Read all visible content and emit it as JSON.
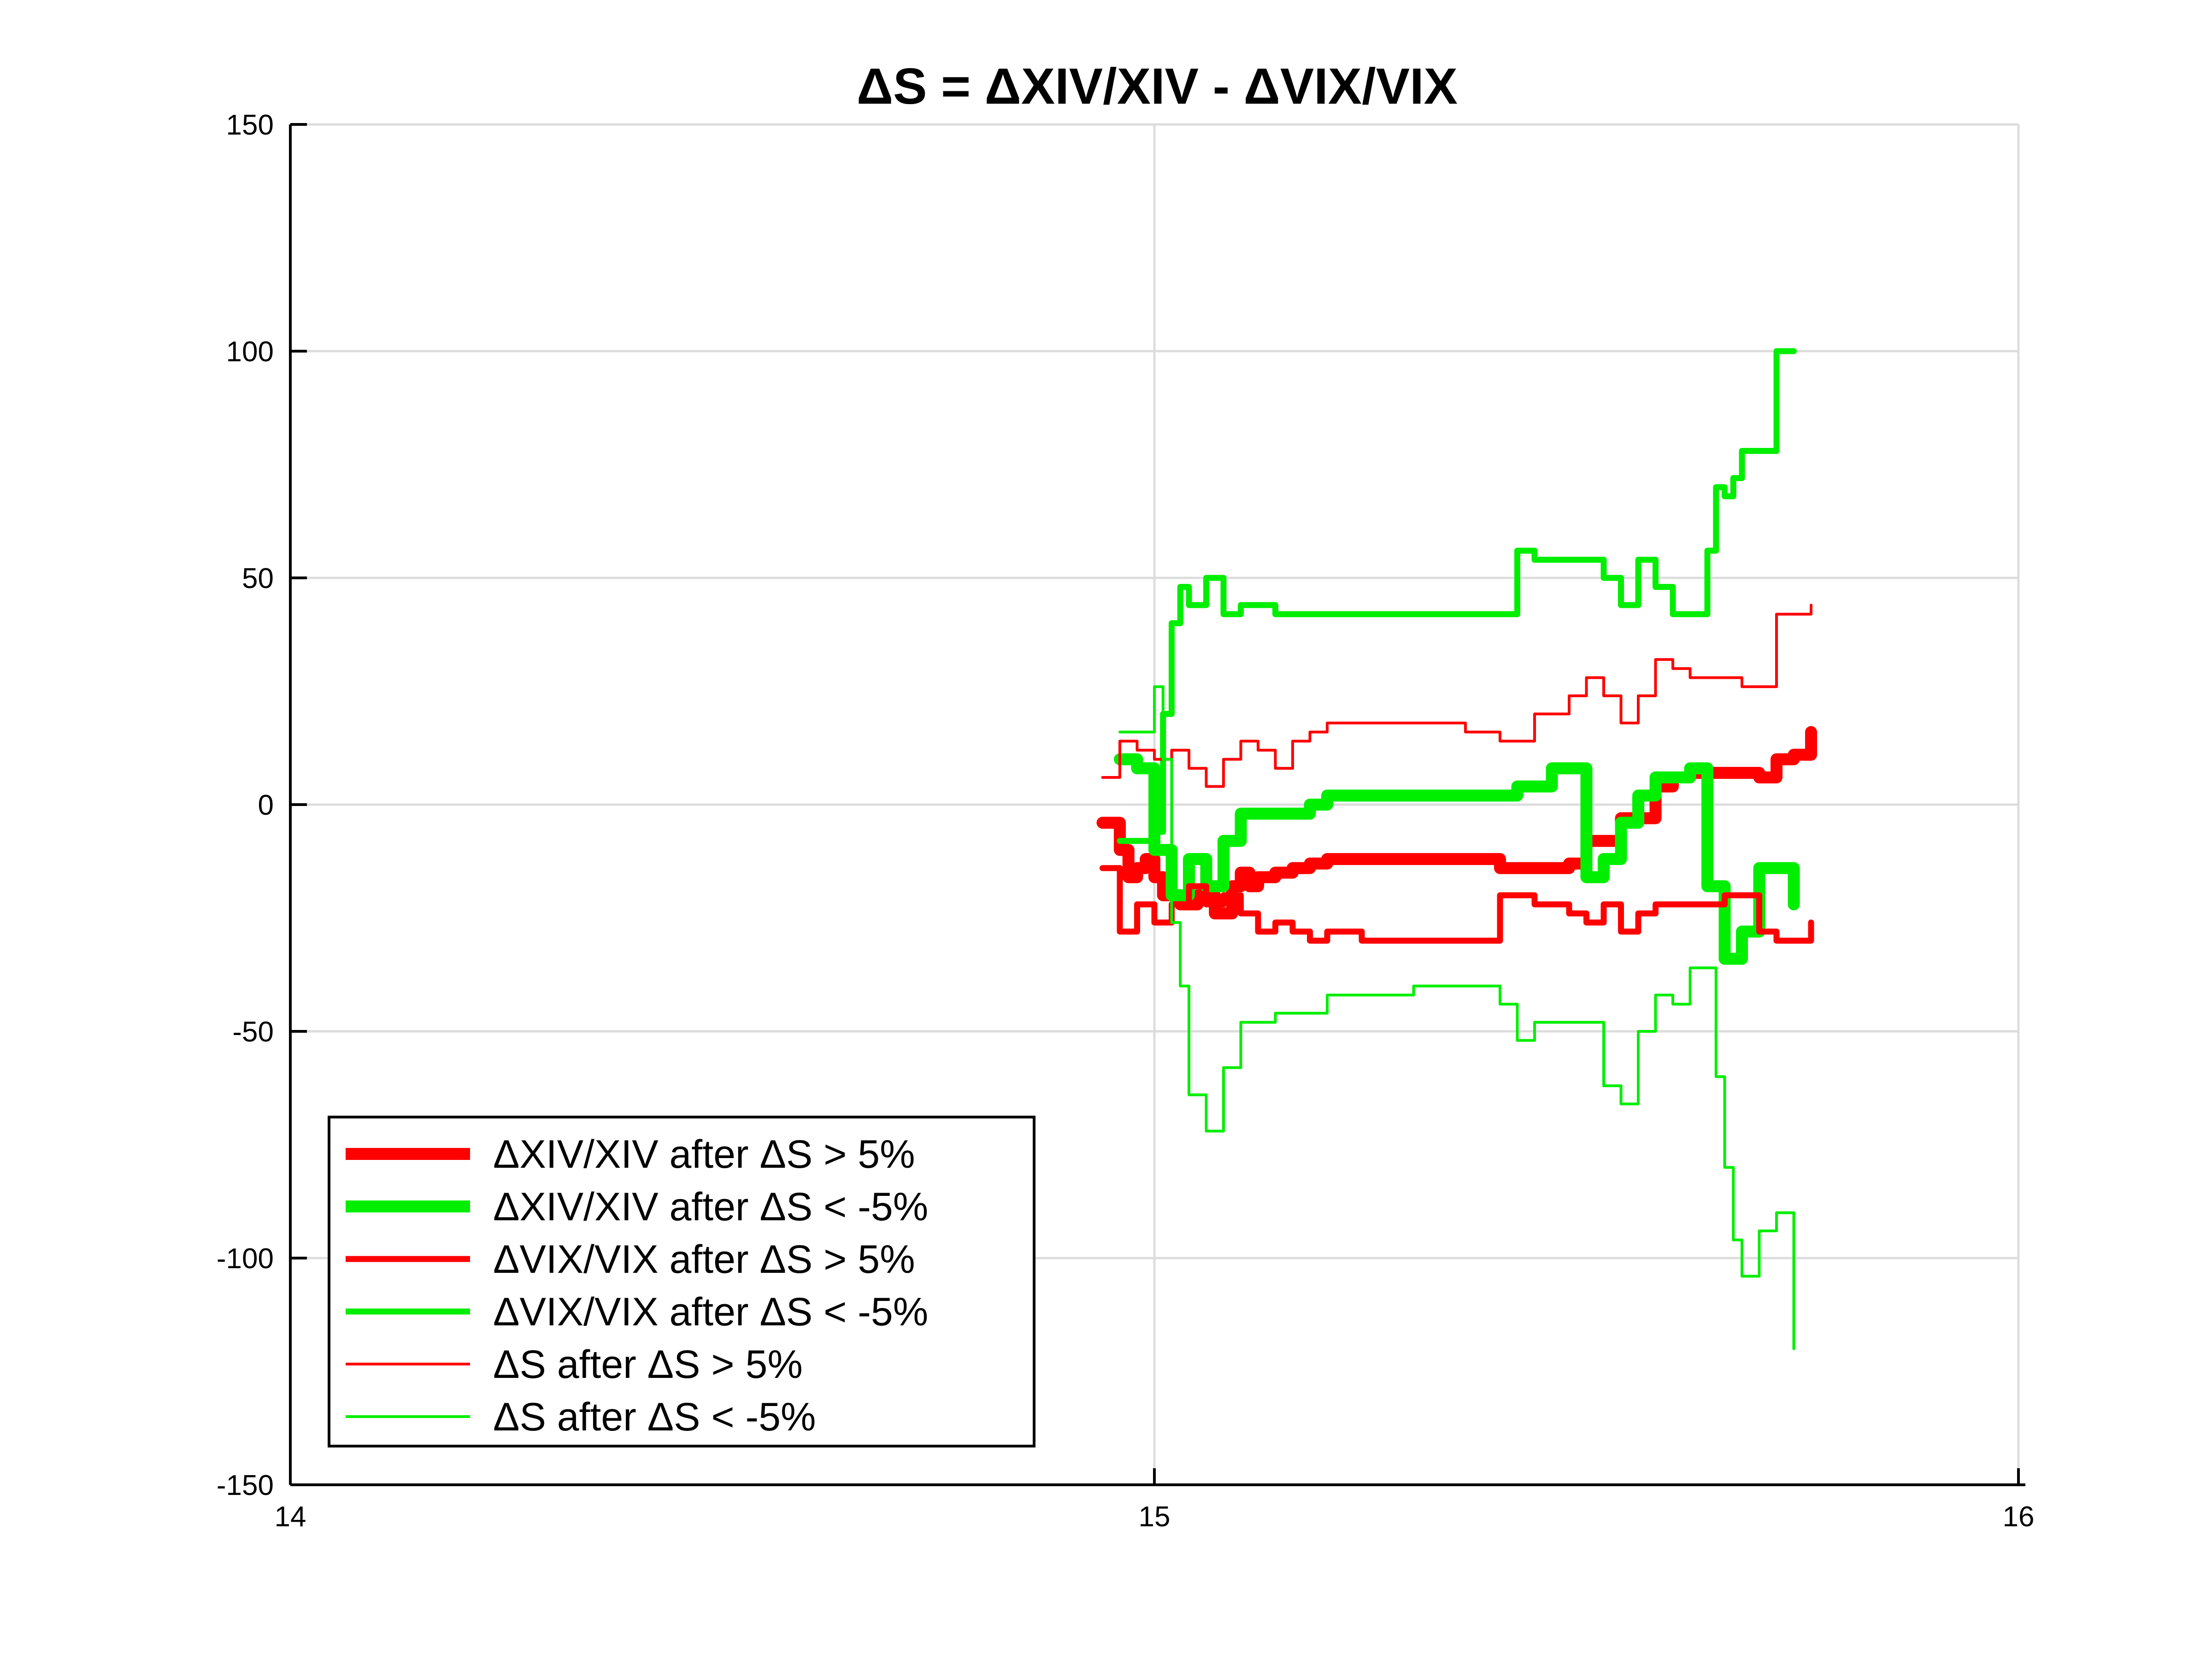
{
  "chart_data": {
    "type": "line",
    "title": "ΔS = ΔXIV/XIV - ΔVIX/VIX",
    "xlabel": "",
    "ylabel": "",
    "xlim": [
      14,
      16
    ],
    "ylim": [
      -150,
      150
    ],
    "x_ticks": [
      14,
      15,
      16
    ],
    "y_ticks": [
      150,
      100,
      50,
      0,
      -50,
      -100,
      -150
    ],
    "grid": true,
    "legend_position": "bottom-left",
    "series": [
      {
        "name": "ΔXIV/XIV after ΔS > 5%",
        "color": "#ff0000",
        "weight": "thick",
        "x": [
          14.94,
          14.96,
          14.97,
          14.98,
          14.99,
          15.0,
          15.01,
          15.03,
          15.05,
          15.07,
          15.09,
          15.1,
          15.11,
          15.12,
          15.14,
          15.16,
          15.18,
          15.2,
          15.22,
          15.26,
          15.3,
          15.36,
          15.4,
          15.44,
          15.48,
          15.5,
          15.54,
          15.58,
          15.6,
          15.62,
          15.64,
          15.66,
          15.68,
          15.7,
          15.72,
          15.74,
          15.76
        ],
        "y": [
          -4,
          -10,
          -16,
          -14,
          -12,
          -16,
          -20,
          -22,
          -20,
          -24,
          -18,
          -15,
          -18,
          -16,
          -15,
          -14,
          -13,
          -12,
          -12,
          -12,
          -12,
          -12,
          -14,
          -14,
          -13,
          -8,
          -3,
          4,
          6,
          7,
          7,
          7,
          7,
          6,
          10,
          11,
          16
        ]
      },
      {
        "name": "ΔXIV/XIV after ΔS < -5%",
        "color": "#00ee00",
        "weight": "thick",
        "x": [
          14.96,
          14.98,
          15.0,
          15.02,
          15.04,
          15.06,
          15.08,
          15.1,
          15.14,
          15.18,
          15.2,
          15.24,
          15.3,
          15.36,
          15.4,
          15.42,
          15.46,
          15.48,
          15.5,
          15.52,
          15.54,
          15.56,
          15.58,
          15.62,
          15.64,
          15.66,
          15.68,
          15.7,
          15.72,
          15.74
        ],
        "y": [
          10,
          8,
          -10,
          -20,
          -12,
          -18,
          -8,
          -2,
          -2,
          0,
          2,
          2,
          2,
          2,
          2,
          4,
          8,
          8,
          -16,
          -12,
          -4,
          2,
          6,
          8,
          -18,
          -34,
          -28,
          -14,
          -14,
          -22
        ]
      },
      {
        "name": "ΔVIX/VIX after ΔS > 5%",
        "color": "#ff0000",
        "weight": "medium",
        "x": [
          14.94,
          14.96,
          14.98,
          15.0,
          15.02,
          15.04,
          15.06,
          15.08,
          15.1,
          15.12,
          15.14,
          15.16,
          15.18,
          15.2,
          15.24,
          15.3,
          15.36,
          15.4,
          15.44,
          15.48,
          15.5,
          15.52,
          15.54,
          15.56,
          15.58,
          15.62,
          15.66,
          15.7,
          15.72,
          15.74,
          15.76
        ],
        "y": [
          -14,
          -28,
          -22,
          -26,
          -22,
          -18,
          -22,
          -20,
          -24,
          -28,
          -26,
          -28,
          -30,
          -28,
          -30,
          -30,
          -30,
          -20,
          -22,
          -24,
          -26,
          -22,
          -28,
          -24,
          -22,
          -22,
          -20,
          -28,
          -30,
          -30,
          -26
        ]
      },
      {
        "name": "ΔVIX/VIX after ΔS < -5%",
        "color": "#00ee00",
        "weight": "medium",
        "x": [
          14.96,
          14.98,
          15.0,
          15.01,
          15.02,
          15.03,
          15.04,
          15.06,
          15.08,
          15.1,
          15.14,
          15.2,
          15.3,
          15.36,
          15.4,
          15.42,
          15.44,
          15.46,
          15.5,
          15.52,
          15.54,
          15.56,
          15.58,
          15.6,
          15.62,
          15.64,
          15.65,
          15.66,
          15.67,
          15.68,
          15.7,
          15.72,
          15.74
        ],
        "y": [
          -8,
          -8,
          -6,
          20,
          40,
          48,
          44,
          50,
          42,
          44,
          42,
          42,
          42,
          42,
          42,
          56,
          54,
          54,
          54,
          50,
          44,
          54,
          48,
          42,
          42,
          56,
          70,
          68,
          72,
          78,
          78,
          100,
          100
        ]
      },
      {
        "name": "ΔS after ΔS > 5%",
        "color": "#ff0000",
        "weight": "thin",
        "x": [
          14.94,
          14.96,
          14.98,
          15.0,
          15.02,
          15.04,
          15.06,
          15.08,
          15.1,
          15.12,
          15.14,
          15.16,
          15.18,
          15.2,
          15.24,
          15.3,
          15.36,
          15.4,
          15.44,
          15.48,
          15.5,
          15.52,
          15.54,
          15.56,
          15.58,
          15.6,
          15.62,
          15.64,
          15.66,
          15.68,
          15.7,
          15.72,
          15.74,
          15.76
        ],
        "y": [
          6,
          14,
          12,
          10,
          12,
          8,
          4,
          10,
          14,
          12,
          8,
          14,
          16,
          18,
          18,
          18,
          16,
          14,
          20,
          24,
          28,
          24,
          18,
          24,
          32,
          30,
          28,
          28,
          28,
          26,
          26,
          42,
          42,
          44
        ]
      },
      {
        "name": "ΔS after ΔS < -5%",
        "color": "#00ee00",
        "weight": "thin",
        "x": [
          14.96,
          14.98,
          15.0,
          15.01,
          15.02,
          15.03,
          15.04,
          15.06,
          15.08,
          15.1,
          15.14,
          15.2,
          15.3,
          15.36,
          15.4,
          15.42,
          15.44,
          15.46,
          15.5,
          15.52,
          15.54,
          15.56,
          15.58,
          15.6,
          15.62,
          15.64,
          15.65,
          15.66,
          15.67,
          15.68,
          15.7,
          15.72,
          15.74
        ],
        "y": [
          16,
          16,
          26,
          10,
          -26,
          -40,
          -64,
          -72,
          -58,
          -48,
          -46,
          -42,
          -40,
          -40,
          -44,
          -52,
          -48,
          -48,
          -48,
          -62,
          -66,
          -50,
          -42,
          -44,
          -36,
          -36,
          -60,
          -80,
          -96,
          -104,
          -94,
          -90,
          -120
        ]
      }
    ]
  }
}
